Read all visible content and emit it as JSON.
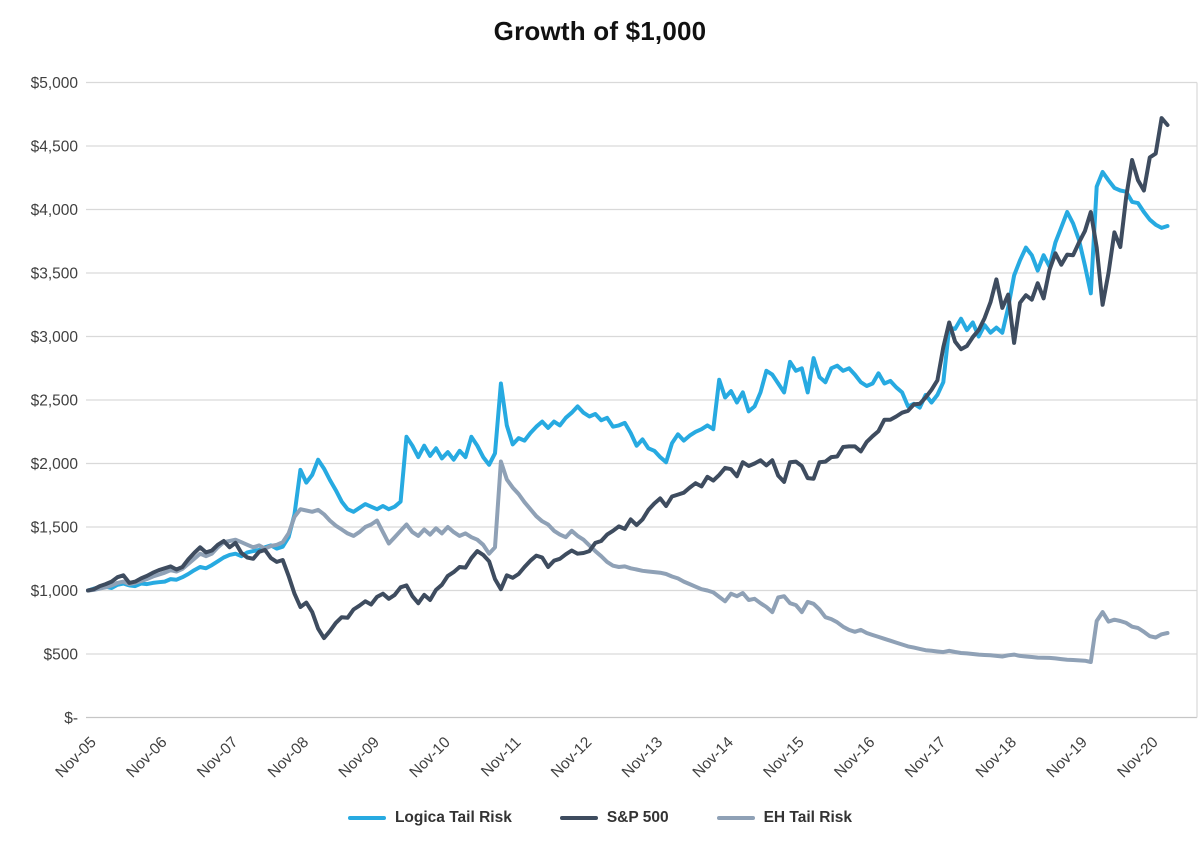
{
  "title": "Growth of $1,000",
  "chart_data": {
    "type": "line",
    "title": "Growth of $1,000",
    "frequency": "monthly",
    "x_start": "Nov-05",
    "x_end": "Feb-21",
    "n_points": 184,
    "grid": "horizontal",
    "legend_position": "bottom-center",
    "background": "#ffffff",
    "gridline_color": "#d9d9d9",
    "x_axis": {
      "tick_interval_months": 12,
      "tick_labels": [
        "Nov-05",
        "Nov-06",
        "Nov-07",
        "Nov-08",
        "Nov-09",
        "Nov-10",
        "Nov-11",
        "Nov-12",
        "Nov-13",
        "Nov-14",
        "Nov-15",
        "Nov-16",
        "Nov-17",
        "Nov-18",
        "Nov-19",
        "Nov-20"
      ]
    },
    "y_axis": {
      "min": 0,
      "max": 5000,
      "step": 500,
      "ticks": [
        {
          "value": 5000,
          "label": "$5,000"
        },
        {
          "value": 4500,
          "label": "$4,500"
        },
        {
          "value": 4000,
          "label": "$4,000"
        },
        {
          "value": 3500,
          "label": "$3,500"
        },
        {
          "value": 3000,
          "label": "$3,000"
        },
        {
          "value": 2500,
          "label": "$2,500"
        },
        {
          "value": 2000,
          "label": "$2,000"
        },
        {
          "value": 1500,
          "label": "$1,500"
        },
        {
          "value": 1000,
          "label": "$1,000"
        },
        {
          "value": 500,
          "label": "$500"
        },
        {
          "value": 0,
          "label": "$-"
        }
      ]
    },
    "series": [
      {
        "name": "Logica Tail Risk",
        "color": "#27aae1",
        "values": [
          1000,
          1015,
          1025,
          1030,
          1020,
          1045,
          1055,
          1040,
          1035,
          1055,
          1050,
          1060,
          1065,
          1070,
          1090,
          1085,
          1105,
          1130,
          1160,
          1185,
          1175,
          1200,
          1230,
          1260,
          1280,
          1290,
          1270,
          1300,
          1310,
          1320,
          1340,
          1355,
          1330,
          1345,
          1420,
          1600,
          1950,
          1850,
          1910,
          2030,
          1960,
          1870,
          1790,
          1700,
          1640,
          1620,
          1650,
          1680,
          1660,
          1640,
          1665,
          1640,
          1660,
          1700,
          2210,
          2140,
          2050,
          2140,
          2060,
          2120,
          2040,
          2090,
          2030,
          2100,
          2050,
          2210,
          2140,
          2050,
          1990,
          2080,
          2630,
          2300,
          2150,
          2200,
          2180,
          2240,
          2290,
          2330,
          2280,
          2330,
          2300,
          2360,
          2400,
          2450,
          2400,
          2370,
          2390,
          2340,
          2360,
          2290,
          2300,
          2320,
          2240,
          2140,
          2190,
          2120,
          2100,
          2050,
          2010,
          2160,
          2230,
          2180,
          2220,
          2250,
          2270,
          2300,
          2270,
          2660,
          2520,
          2570,
          2480,
          2560,
          2410,
          2450,
          2560,
          2730,
          2700,
          2630,
          2560,
          2800,
          2730,
          2750,
          2560,
          2830,
          2680,
          2640,
          2750,
          2770,
          2730,
          2750,
          2700,
          2640,
          2610,
          2630,
          2710,
          2630,
          2650,
          2600,
          2560,
          2450,
          2470,
          2440,
          2540,
          2480,
          2540,
          2640,
          3070,
          3060,
          3140,
          3050,
          3110,
          3000,
          3090,
          3030,
          3070,
          3030,
          3230,
          3480,
          3600,
          3700,
          3640,
          3520,
          3640,
          3550,
          3740,
          3860,
          3980,
          3890,
          3760,
          3560,
          3340,
          4180,
          4295,
          4230,
          4170,
          4150,
          4140,
          4060,
          4050,
          3980,
          3920,
          3880,
          3855,
          3870
        ]
      },
      {
        "name": "S&P 500",
        "color": "#3e4c5f",
        "values": [
          1000,
          1010,
          1035,
          1050,
          1070,
          1105,
          1120,
          1060,
          1070,
          1095,
          1115,
          1140,
          1160,
          1175,
          1190,
          1165,
          1185,
          1245,
          1295,
          1340,
          1300,
          1315,
          1360,
          1390,
          1340,
          1375,
          1295,
          1260,
          1250,
          1305,
          1320,
          1255,
          1225,
          1240,
          1115,
          975,
          870,
          905,
          830,
          700,
          625,
          680,
          745,
          790,
          785,
          850,
          880,
          915,
          890,
          950,
          975,
          935,
          965,
          1025,
          1040,
          955,
          900,
          965,
          925,
          1005,
          1045,
          1115,
          1145,
          1185,
          1180,
          1255,
          1310,
          1280,
          1230,
          1090,
          1010,
          1120,
          1100,
          1130,
          1185,
          1235,
          1275,
          1260,
          1185,
          1235,
          1250,
          1285,
          1315,
          1290,
          1295,
          1310,
          1375,
          1390,
          1440,
          1470,
          1505,
          1485,
          1560,
          1515,
          1560,
          1635,
          1685,
          1725,
          1665,
          1740,
          1755,
          1770,
          1810,
          1845,
          1820,
          1895,
          1865,
          1910,
          1965,
          1955,
          1900,
          2010,
          1980,
          2000,
          2025,
          1985,
          2025,
          1905,
          1855,
          2010,
          2015,
          1980,
          1885,
          1880,
          2010,
          2015,
          2050,
          2055,
          2130,
          2135,
          2135,
          2095,
          2170,
          2215,
          2255,
          2345,
          2345,
          2370,
          2400,
          2415,
          2465,
          2470,
          2520,
          2580,
          2655,
          2915,
          3110,
          2960,
          2900,
          2925,
          2995,
          3050,
          3145,
          3270,
          3450,
          3225,
          3330,
          2950,
          3265,
          3325,
          3290,
          3420,
          3300,
          3525,
          3655,
          3565,
          3645,
          3640,
          3740,
          3830,
          3980,
          3700,
          3250,
          3500,
          3820,
          3705,
          4100,
          4390,
          4230,
          4150,
          4410,
          4440,
          4720,
          4665
        ]
      },
      {
        "name": "EH Tail Risk",
        "color": "#8fa1b6",
        "values": [
          1000,
          1005,
          1015,
          1025,
          1040,
          1060,
          1070,
          1050,
          1060,
          1075,
          1090,
          1110,
          1125,
          1140,
          1160,
          1150,
          1170,
          1210,
          1250,
          1290,
          1270,
          1290,
          1340,
          1380,
          1390,
          1400,
          1380,
          1360,
          1340,
          1355,
          1330,
          1350,
          1360,
          1380,
          1450,
          1580,
          1640,
          1630,
          1620,
          1635,
          1600,
          1550,
          1510,
          1480,
          1450,
          1430,
          1460,
          1500,
          1520,
          1550,
          1460,
          1370,
          1420,
          1470,
          1520,
          1460,
          1430,
          1480,
          1440,
          1490,
          1450,
          1500,
          1460,
          1430,
          1450,
          1420,
          1400,
          1360,
          1290,
          1340,
          2016,
          1875,
          1810,
          1760,
          1695,
          1640,
          1585,
          1545,
          1520,
          1470,
          1440,
          1420,
          1470,
          1430,
          1400,
          1355,
          1310,
          1270,
          1225,
          1195,
          1185,
          1190,
          1175,
          1165,
          1155,
          1150,
          1145,
          1140,
          1130,
          1110,
          1095,
          1070,
          1050,
          1030,
          1010,
          1000,
          985,
          950,
          915,
          975,
          955,
          980,
          925,
          935,
          900,
          870,
          830,
          945,
          955,
          900,
          885,
          830,
          910,
          895,
          850,
          790,
          775,
          750,
          715,
          690,
          675,
          690,
          665,
          650,
          635,
          620,
          605,
          590,
          575,
          560,
          550,
          540,
          530,
          525,
          520,
          515,
          525,
          516,
          508,
          505,
          500,
          495,
          492,
          490,
          485,
          480,
          490,
          495,
          485,
          480,
          476,
          472,
          470,
          469,
          465,
          460,
          455,
          453,
          450,
          447,
          437,
          760,
          830,
          755,
          770,
          760,
          745,
          715,
          705,
          675,
          640,
          630,
          655,
          665
        ]
      }
    ]
  }
}
